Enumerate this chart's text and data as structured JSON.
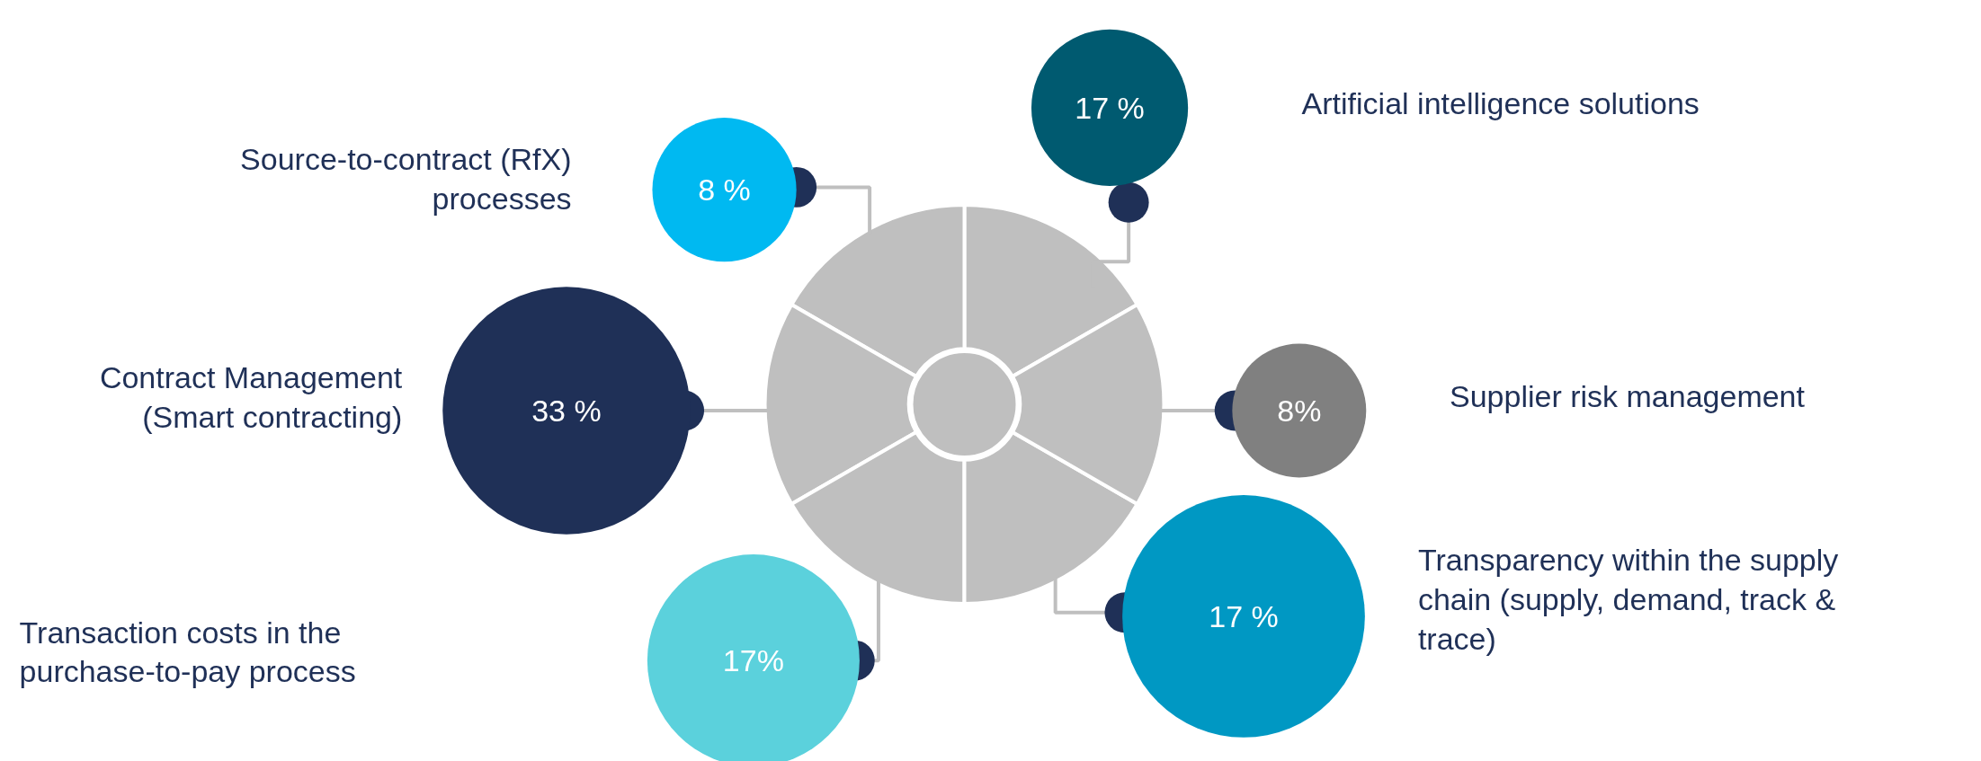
{
  "chart_data": {
    "type": "other",
    "categories": [
      "Artificial intelligence solutions",
      "Source-to-contract (RfX)\nprocesses",
      "Contract Management\n(Smart contracting)",
      "Supplier risk management",
      "Transparency within the supply\nchain (supply, demand, track &\ntrace)",
      "Transaction costs in the\npurchase-to-pay process"
    ],
    "values": [
      17,
      8,
      33,
      8,
      17,
      17
    ],
    "value_labels": [
      "17 %",
      "8 %",
      "33 %",
      "8%",
      "17 %",
      "17%"
    ],
    "colors": [
      "#005a70",
      "#00b9f1",
      "#1f3057",
      "#808080",
      "#0098c3",
      "#5bd1dc"
    ]
  }
}
